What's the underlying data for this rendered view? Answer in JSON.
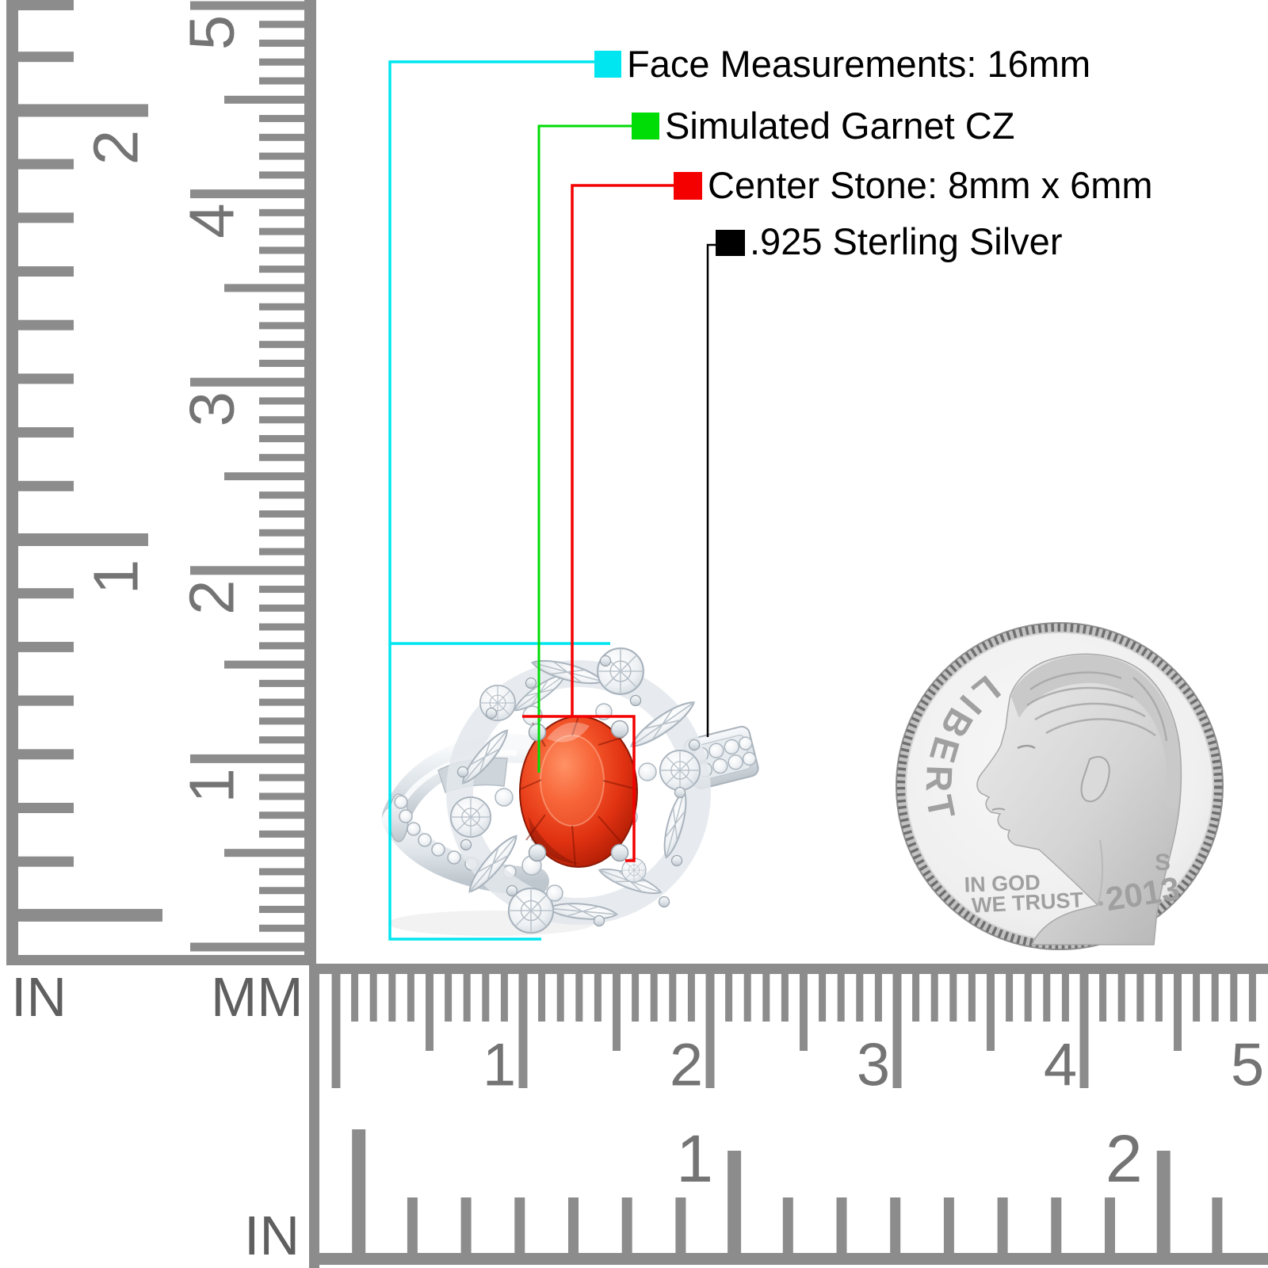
{
  "labels": {
    "face": {
      "text": "Face Measurements: 16mm",
      "color": "#00e6f0"
    },
    "garnet": {
      "text": "Simulated Garnet CZ",
      "color": "#00dc05"
    },
    "center_stone": {
      "text": "Center Stone: 8mm x 6mm",
      "color": "#f40000"
    },
    "metal": {
      "text": ".925 Sterling Silver",
      "color": "#000000"
    }
  },
  "left_ruler": {
    "unit_left": "IN",
    "unit_right": "MM",
    "in_numbers": [
      "2",
      "1"
    ],
    "mm_numbers": [
      "5",
      "4",
      "3",
      "2",
      "1"
    ]
  },
  "bottom_ruler": {
    "unit_label": "IN",
    "mm_numbers": [
      "1",
      "2",
      "3",
      "4",
      "5"
    ],
    "in_numbers": [
      "1",
      "2"
    ]
  },
  "coin": {
    "legend": "LIBERTY",
    "motto_top": "IN GOD",
    "motto_bottom": "WE TRUST",
    "year": "2013",
    "mint_mark": "S"
  },
  "colors": {
    "ruler": "#8c8c8c",
    "ruler_number": "#747474",
    "coin_text": "#a0a0a0"
  }
}
